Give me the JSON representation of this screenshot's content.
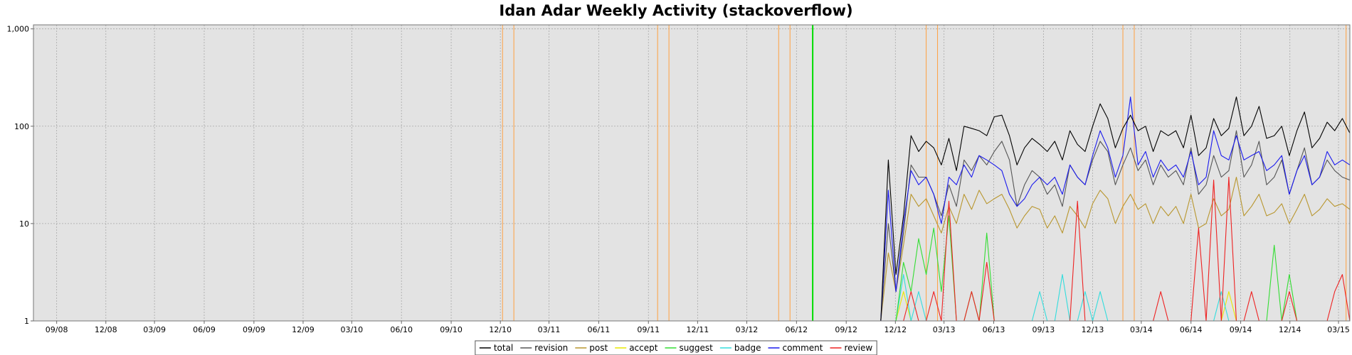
{
  "chart_data": {
    "type": "line",
    "title": "Idan Adar Weekly Activity (stackoverflow)",
    "xlabel": "",
    "ylabel": "",
    "y_scale": "log",
    "ylim": [
      1,
      1100
    ],
    "y_ticks": [
      {
        "value": 1,
        "label": "1"
      },
      {
        "value": 10,
        "label": "10"
      },
      {
        "value": 100,
        "label": "100"
      },
      {
        "value": 1000,
        "label": "1,000"
      }
    ],
    "x_range": [
      "2008-07-20",
      "2015-03-22"
    ],
    "x_ticks": [
      {
        "date": "2008-09-01",
        "label": "09/08"
      },
      {
        "date": "2008-12-01",
        "label": "12/08"
      },
      {
        "date": "2009-03-01",
        "label": "03/09"
      },
      {
        "date": "2009-06-01",
        "label": "06/09"
      },
      {
        "date": "2009-09-01",
        "label": "09/09"
      },
      {
        "date": "2009-12-01",
        "label": "12/09"
      },
      {
        "date": "2010-03-01",
        "label": "03/10"
      },
      {
        "date": "2010-06-01",
        "label": "06/10"
      },
      {
        "date": "2010-09-01",
        "label": "09/10"
      },
      {
        "date": "2010-12-01",
        "label": "12/10"
      },
      {
        "date": "2011-03-01",
        "label": "03/11"
      },
      {
        "date": "2011-06-01",
        "label": "06/11"
      },
      {
        "date": "2011-09-01",
        "label": "09/11"
      },
      {
        "date": "2011-12-01",
        "label": "12/11"
      },
      {
        "date": "2012-03-01",
        "label": "03/12"
      },
      {
        "date": "2012-06-01",
        "label": "06/12"
      },
      {
        "date": "2012-09-01",
        "label": "09/12"
      },
      {
        "date": "2012-12-01",
        "label": "12/12"
      },
      {
        "date": "2013-03-01",
        "label": "03/13"
      },
      {
        "date": "2013-06-01",
        "label": "06/13"
      },
      {
        "date": "2013-09-01",
        "label": "09/13"
      },
      {
        "date": "2013-12-01",
        "label": "12/13"
      },
      {
        "date": "2014-03-01",
        "label": "03/14"
      },
      {
        "date": "2014-06-01",
        "label": "06/14"
      },
      {
        "date": "2014-09-01",
        "label": "09/14"
      },
      {
        "date": "2014-12-01",
        "label": "12/14"
      },
      {
        "date": "2015-03-01",
        "label": "03/15"
      }
    ],
    "grid": true,
    "legend_position": "bottom-center",
    "event_markers": [
      {
        "date": "2010-12-05",
        "color": "#ffa040"
      },
      {
        "date": "2010-12-26",
        "color": "#ffa040"
      },
      {
        "date": "2011-09-18",
        "color": "#ffa040"
      },
      {
        "date": "2011-10-09",
        "color": "#ffa040"
      },
      {
        "date": "2012-04-29",
        "color": "#ffa040"
      },
      {
        "date": "2012-05-20",
        "color": "#ffa040"
      },
      {
        "date": "2012-07-01",
        "color": "#00dd00"
      },
      {
        "date": "2013-01-27",
        "color": "#ffa040"
      },
      {
        "date": "2013-02-17",
        "color": "#ffa040"
      },
      {
        "date": "2014-01-26",
        "color": "#ffa040"
      },
      {
        "date": "2014-02-16",
        "color": "#ffa040"
      },
      {
        "date": "2015-03-15",
        "color": "#ffa040"
      }
    ],
    "x_dates": [
      "2012-10-07",
      "2012-11-04",
      "2012-11-18",
      "2012-12-02",
      "2012-12-16",
      "2012-12-30",
      "2013-01-13",
      "2013-01-27",
      "2013-02-10",
      "2013-02-24",
      "2013-03-10",
      "2013-03-24",
      "2013-04-07",
      "2013-04-21",
      "2013-05-05",
      "2013-05-19",
      "2013-06-02",
      "2013-06-16",
      "2013-06-30",
      "2013-07-14",
      "2013-07-28",
      "2013-08-11",
      "2013-08-25",
      "2013-09-08",
      "2013-09-22",
      "2013-10-06",
      "2013-10-20",
      "2013-11-03",
      "2013-11-17",
      "2013-12-01",
      "2013-12-15",
      "2013-12-29",
      "2014-01-12",
      "2014-01-26",
      "2014-02-09",
      "2014-02-23",
      "2014-03-09",
      "2014-03-23",
      "2014-04-06",
      "2014-04-20",
      "2014-05-04",
      "2014-05-18",
      "2014-06-01",
      "2014-06-15",
      "2014-06-29",
      "2014-07-13",
      "2014-07-27",
      "2014-08-10",
      "2014-08-24",
      "2014-09-07",
      "2014-09-21",
      "2014-10-05",
      "2014-10-19",
      "2014-11-02",
      "2014-11-16",
      "2014-11-30",
      "2014-12-14",
      "2014-12-28",
      "2015-01-11",
      "2015-01-25",
      "2015-02-08",
      "2015-02-22",
      "2015-03-08",
      "2015-03-22"
    ],
    "series": [
      {
        "name": "total",
        "color": "#000000",
        "values": [
          1,
          1,
          45,
          3,
          12,
          80,
          55,
          70,
          60,
          40,
          75,
          35,
          100,
          95,
          90,
          80,
          125,
          130,
          80,
          40,
          60,
          75,
          65,
          55,
          70,
          45,
          90,
          65,
          55,
          100,
          170,
          120,
          60,
          95,
          130,
          90,
          100,
          55,
          90,
          80,
          90,
          60,
          130,
          50,
          60,
          120,
          80,
          95,
          200,
          80,
          100,
          160,
          75,
          80,
          100,
          50,
          90,
          140,
          60,
          75,
          110,
          90,
          120,
          85
        ]
      },
      {
        "name": "revision",
        "color": "#555555",
        "values": [
          1,
          1,
          10,
          2,
          8,
          40,
          30,
          30,
          20,
          12,
          25,
          15,
          45,
          35,
          50,
          40,
          55,
          70,
          45,
          15,
          25,
          35,
          30,
          20,
          25,
          15,
          40,
          30,
          25,
          45,
          70,
          55,
          25,
          40,
          60,
          35,
          45,
          25,
          40,
          30,
          35,
          25,
          60,
          20,
          25,
          50,
          30,
          35,
          90,
          30,
          40,
          70,
          25,
          30,
          45,
          20,
          35,
          60,
          25,
          30,
          45,
          35,
          30,
          28
        ]
      },
      {
        "name": "post",
        "color": "#b8962e",
        "values": [
          1,
          1,
          5,
          2,
          6,
          20,
          15,
          18,
          12,
          8,
          15,
          10,
          20,
          14,
          22,
          16,
          18,
          20,
          14,
          9,
          12,
          15,
          14,
          9,
          12,
          8,
          15,
          12,
          9,
          16,
          22,
          18,
          10,
          15,
          20,
          14,
          16,
          10,
          15,
          12,
          15,
          10,
          20,
          9,
          10,
          18,
          12,
          14,
          30,
          12,
          15,
          20,
          12,
          13,
          16,
          10,
          14,
          20,
          12,
          14,
          18,
          15,
          16,
          14
        ]
      },
      {
        "name": "accept",
        "color": "#e8e800",
        "values": [
          1,
          1,
          1,
          1,
          2,
          1,
          1,
          1,
          1,
          1,
          1,
          1,
          1,
          1,
          1,
          1,
          1,
          1,
          1,
          1,
          1,
          1,
          1,
          1,
          1,
          1,
          1,
          1,
          1,
          1,
          1,
          1,
          1,
          1,
          1,
          1,
          1,
          1,
          1,
          1,
          1,
          1,
          1,
          1,
          1,
          1,
          1,
          2,
          1,
          1,
          1,
          1,
          1,
          1,
          1,
          1,
          1,
          1,
          1,
          1,
          1,
          1,
          1,
          1
        ]
      },
      {
        "name": "suggest",
        "color": "#33dd33",
        "values": [
          1,
          1,
          1,
          1,
          4,
          2,
          7,
          3,
          9,
          2,
          12,
          1,
          1,
          2,
          1,
          8,
          1,
          1,
          1,
          1,
          1,
          1,
          1,
          1,
          1,
          1,
          1,
          1,
          1,
          1,
          1,
          1,
          1,
          1,
          1,
          1,
          1,
          1,
          1,
          1,
          1,
          1,
          1,
          1,
          1,
          1,
          1,
          1,
          1,
          1,
          1,
          1,
          1,
          6,
          1,
          3,
          1,
          1,
          1,
          1,
          1,
          1,
          1,
          1
        ]
      },
      {
        "name": "badge",
        "color": "#33dddd",
        "values": [
          1,
          1,
          1,
          1,
          3,
          1,
          2,
          1,
          1,
          1,
          1,
          1,
          1,
          1,
          1,
          1,
          1,
          1,
          1,
          1,
          1,
          1,
          2,
          1,
          1,
          3,
          1,
          1,
          2,
          1,
          2,
          1,
          1,
          1,
          1,
          1,
          1,
          1,
          1,
          1,
          1,
          1,
          1,
          1,
          1,
          1,
          2,
          1,
          1,
          1,
          1,
          1,
          1,
          1,
          1,
          1,
          1,
          1,
          1,
          1,
          1,
          1,
          1,
          1
        ]
      },
      {
        "name": "comment",
        "color": "#1a1aee",
        "values": [
          1,
          1,
          22,
          2,
          10,
          35,
          25,
          30,
          20,
          10,
          30,
          25,
          40,
          30,
          50,
          45,
          40,
          35,
          20,
          15,
          18,
          25,
          30,
          25,
          30,
          20,
          40,
          30,
          25,
          50,
          90,
          60,
          30,
          50,
          200,
          40,
          55,
          30,
          45,
          35,
          40,
          30,
          55,
          25,
          30,
          90,
          50,
          45,
          80,
          45,
          50,
          55,
          35,
          40,
          50,
          20,
          35,
          50,
          25,
          30,
          55,
          40,
          45,
          40
        ]
      },
      {
        "name": "review",
        "color": "#ee2222",
        "values": [
          1,
          1,
          1,
          1,
          1,
          2,
          1,
          1,
          2,
          1,
          17,
          1,
          1,
          2,
          1,
          4,
          1,
          1,
          1,
          1,
          1,
          1,
          1,
          1,
          1,
          1,
          1,
          17,
          1,
          1,
          1,
          1,
          1,
          1,
          1,
          1,
          1,
          1,
          2,
          1,
          1,
          1,
          1,
          9,
          1,
          28,
          1,
          30,
          1,
          1,
          2,
          1,
          1,
          1,
          1,
          2,
          1,
          1,
          1,
          1,
          1,
          2,
          3,
          1
        ]
      }
    ]
  }
}
